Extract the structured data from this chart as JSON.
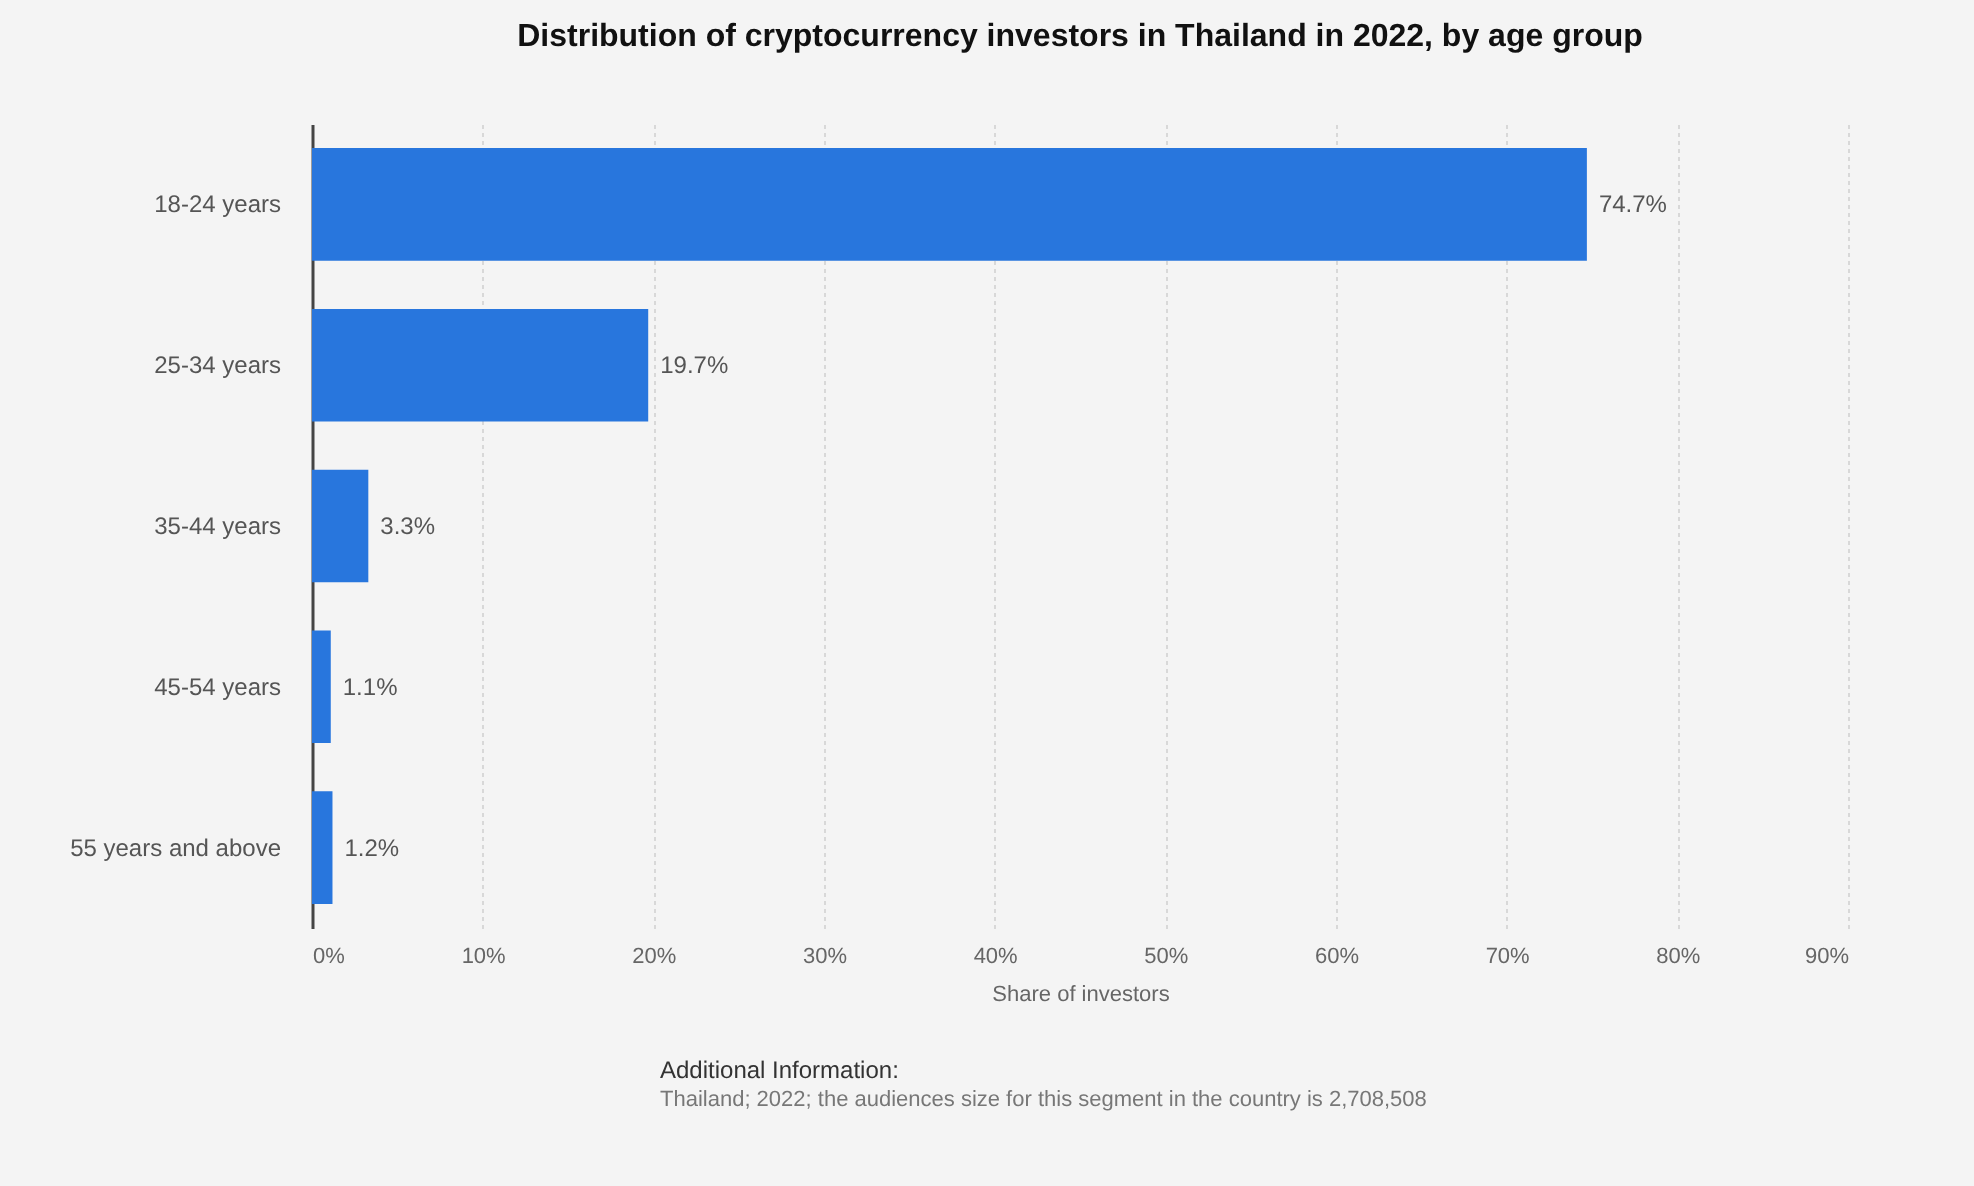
{
  "chart_data": {
    "type": "bar",
    "orientation": "horizontal",
    "title": "Distribution of cryptocurrency investors in Thailand in 2022, by age group",
    "xlabel": "Share of investors",
    "categories": [
      "18-24 years",
      "25-34 years",
      "35-44 years",
      "45-54 years",
      "55 years and above"
    ],
    "values": [
      74.7,
      19.7,
      3.3,
      1.1,
      1.2
    ],
    "value_labels": [
      "74.7%",
      "19.7%",
      "3.3%",
      "1.1%",
      "1.2%"
    ],
    "color": "#2876dd",
    "xlim": [
      0,
      90
    ],
    "xticks": [
      {
        "value": 0,
        "label": "0%"
      },
      {
        "value": 10,
        "label": "10%"
      },
      {
        "value": 20,
        "label": "20%"
      },
      {
        "value": 30,
        "label": "30%"
      },
      {
        "value": 40,
        "label": "40%"
      },
      {
        "value": 50,
        "label": "50%"
      },
      {
        "value": 60,
        "label": "60%"
      },
      {
        "value": 70,
        "label": "70%"
      },
      {
        "value": 80,
        "label": "80%"
      },
      {
        "value": 90,
        "label": "90%"
      }
    ],
    "grid": "x",
    "annotations": [
      "Additional Information:",
      "Thailand; 2022; the audiences size for this segment in the country is 2,708,508"
    ]
  }
}
